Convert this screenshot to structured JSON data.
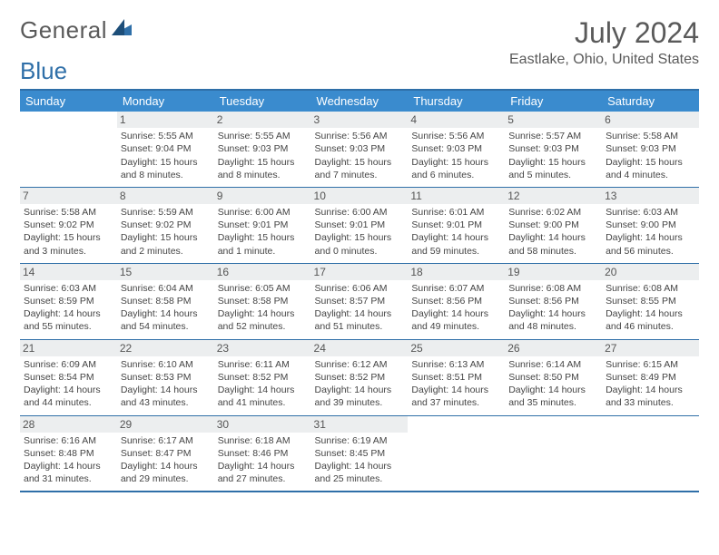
{
  "brand": {
    "name_a": "General",
    "name_b": "Blue"
  },
  "title": "July 2024",
  "location": "Eastlake, Ohio, United States",
  "colors": {
    "header_bg": "#3a8bce",
    "rule": "#2f6fa8",
    "daynum_bg": "#eceeef",
    "text": "#444444",
    "title_text": "#5a5a5a"
  },
  "day_labels": [
    "Sunday",
    "Monday",
    "Tuesday",
    "Wednesday",
    "Thursday",
    "Friday",
    "Saturday"
  ],
  "weeks": [
    [
      {
        "n": "",
        "sr": "",
        "ss": "",
        "dl": ""
      },
      {
        "n": "1",
        "sr": "Sunrise: 5:55 AM",
        "ss": "Sunset: 9:04 PM",
        "dl": "Daylight: 15 hours and 8 minutes."
      },
      {
        "n": "2",
        "sr": "Sunrise: 5:55 AM",
        "ss": "Sunset: 9:03 PM",
        "dl": "Daylight: 15 hours and 8 minutes."
      },
      {
        "n": "3",
        "sr": "Sunrise: 5:56 AM",
        "ss": "Sunset: 9:03 PM",
        "dl": "Daylight: 15 hours and 7 minutes."
      },
      {
        "n": "4",
        "sr": "Sunrise: 5:56 AM",
        "ss": "Sunset: 9:03 PM",
        "dl": "Daylight: 15 hours and 6 minutes."
      },
      {
        "n": "5",
        "sr": "Sunrise: 5:57 AM",
        "ss": "Sunset: 9:03 PM",
        "dl": "Daylight: 15 hours and 5 minutes."
      },
      {
        "n": "6",
        "sr": "Sunrise: 5:58 AM",
        "ss": "Sunset: 9:03 PM",
        "dl": "Daylight: 15 hours and 4 minutes."
      }
    ],
    [
      {
        "n": "7",
        "sr": "Sunrise: 5:58 AM",
        "ss": "Sunset: 9:02 PM",
        "dl": "Daylight: 15 hours and 3 minutes."
      },
      {
        "n": "8",
        "sr": "Sunrise: 5:59 AM",
        "ss": "Sunset: 9:02 PM",
        "dl": "Daylight: 15 hours and 2 minutes."
      },
      {
        "n": "9",
        "sr": "Sunrise: 6:00 AM",
        "ss": "Sunset: 9:01 PM",
        "dl": "Daylight: 15 hours and 1 minute."
      },
      {
        "n": "10",
        "sr": "Sunrise: 6:00 AM",
        "ss": "Sunset: 9:01 PM",
        "dl": "Daylight: 15 hours and 0 minutes."
      },
      {
        "n": "11",
        "sr": "Sunrise: 6:01 AM",
        "ss": "Sunset: 9:01 PM",
        "dl": "Daylight: 14 hours and 59 minutes."
      },
      {
        "n": "12",
        "sr": "Sunrise: 6:02 AM",
        "ss": "Sunset: 9:00 PM",
        "dl": "Daylight: 14 hours and 58 minutes."
      },
      {
        "n": "13",
        "sr": "Sunrise: 6:03 AM",
        "ss": "Sunset: 9:00 PM",
        "dl": "Daylight: 14 hours and 56 minutes."
      }
    ],
    [
      {
        "n": "14",
        "sr": "Sunrise: 6:03 AM",
        "ss": "Sunset: 8:59 PM",
        "dl": "Daylight: 14 hours and 55 minutes."
      },
      {
        "n": "15",
        "sr": "Sunrise: 6:04 AM",
        "ss": "Sunset: 8:58 PM",
        "dl": "Daylight: 14 hours and 54 minutes."
      },
      {
        "n": "16",
        "sr": "Sunrise: 6:05 AM",
        "ss": "Sunset: 8:58 PM",
        "dl": "Daylight: 14 hours and 52 minutes."
      },
      {
        "n": "17",
        "sr": "Sunrise: 6:06 AM",
        "ss": "Sunset: 8:57 PM",
        "dl": "Daylight: 14 hours and 51 minutes."
      },
      {
        "n": "18",
        "sr": "Sunrise: 6:07 AM",
        "ss": "Sunset: 8:56 PM",
        "dl": "Daylight: 14 hours and 49 minutes."
      },
      {
        "n": "19",
        "sr": "Sunrise: 6:08 AM",
        "ss": "Sunset: 8:56 PM",
        "dl": "Daylight: 14 hours and 48 minutes."
      },
      {
        "n": "20",
        "sr": "Sunrise: 6:08 AM",
        "ss": "Sunset: 8:55 PM",
        "dl": "Daylight: 14 hours and 46 minutes."
      }
    ],
    [
      {
        "n": "21",
        "sr": "Sunrise: 6:09 AM",
        "ss": "Sunset: 8:54 PM",
        "dl": "Daylight: 14 hours and 44 minutes."
      },
      {
        "n": "22",
        "sr": "Sunrise: 6:10 AM",
        "ss": "Sunset: 8:53 PM",
        "dl": "Daylight: 14 hours and 43 minutes."
      },
      {
        "n": "23",
        "sr": "Sunrise: 6:11 AM",
        "ss": "Sunset: 8:52 PM",
        "dl": "Daylight: 14 hours and 41 minutes."
      },
      {
        "n": "24",
        "sr": "Sunrise: 6:12 AM",
        "ss": "Sunset: 8:52 PM",
        "dl": "Daylight: 14 hours and 39 minutes."
      },
      {
        "n": "25",
        "sr": "Sunrise: 6:13 AM",
        "ss": "Sunset: 8:51 PM",
        "dl": "Daylight: 14 hours and 37 minutes."
      },
      {
        "n": "26",
        "sr": "Sunrise: 6:14 AM",
        "ss": "Sunset: 8:50 PM",
        "dl": "Daylight: 14 hours and 35 minutes."
      },
      {
        "n": "27",
        "sr": "Sunrise: 6:15 AM",
        "ss": "Sunset: 8:49 PM",
        "dl": "Daylight: 14 hours and 33 minutes."
      }
    ],
    [
      {
        "n": "28",
        "sr": "Sunrise: 6:16 AM",
        "ss": "Sunset: 8:48 PM",
        "dl": "Daylight: 14 hours and 31 minutes."
      },
      {
        "n": "29",
        "sr": "Sunrise: 6:17 AM",
        "ss": "Sunset: 8:47 PM",
        "dl": "Daylight: 14 hours and 29 minutes."
      },
      {
        "n": "30",
        "sr": "Sunrise: 6:18 AM",
        "ss": "Sunset: 8:46 PM",
        "dl": "Daylight: 14 hours and 27 minutes."
      },
      {
        "n": "31",
        "sr": "Sunrise: 6:19 AM",
        "ss": "Sunset: 8:45 PM",
        "dl": "Daylight: 14 hours and 25 minutes."
      },
      {
        "n": "",
        "sr": "",
        "ss": "",
        "dl": ""
      },
      {
        "n": "",
        "sr": "",
        "ss": "",
        "dl": ""
      },
      {
        "n": "",
        "sr": "",
        "ss": "",
        "dl": ""
      }
    ]
  ]
}
